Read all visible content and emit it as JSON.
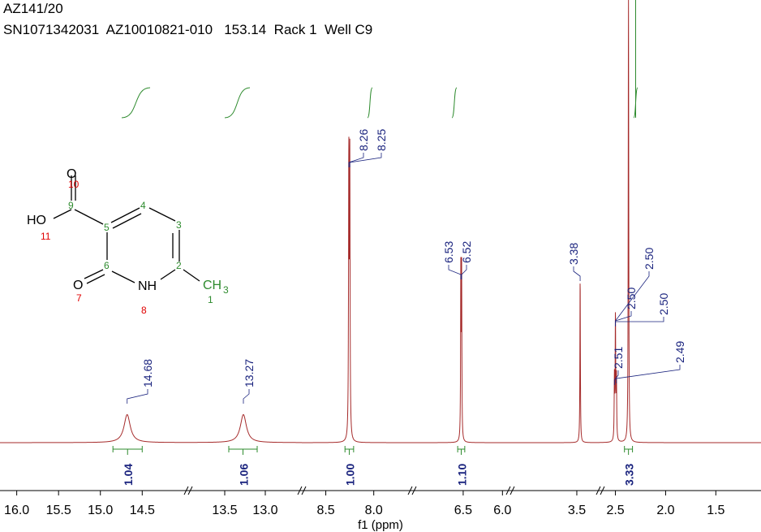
{
  "header": {
    "line1": "AZ141/20",
    "line2": "SN1071342031  AZ10010821-010   153.14  Rack 1  Well C9"
  },
  "colors": {
    "spectrum": "#a52a2a",
    "peak_label": "#1a237e",
    "integral": "#2e8b2e",
    "atom_red": "#e00000",
    "atom_green": "#2e8b2e"
  },
  "chart_data": {
    "type": "line",
    "title": "",
    "xlabel": "f1 (ppm)",
    "ylabel": "",
    "x_reversed": true,
    "axis_segments": [
      {
        "range": [
          16.2,
          13.95
        ],
        "ticks": [
          16.0,
          15.5,
          15.0,
          14.5
        ]
      },
      {
        "range": [
          13.95,
          12.55
        ],
        "ticks": [
          13.5,
          13.0
        ]
      },
      {
        "range": [
          8.75,
          7.6
        ],
        "ticks": [
          8.5,
          8.0
        ]
      },
      {
        "range": [
          7.15,
          5.9
        ],
        "ticks": [
          6.5,
          6.0
        ]
      },
      {
        "range": [
          5.9,
          2.65
        ],
        "ticks": [
          3.5
        ]
      },
      {
        "range": [
          2.65,
          1.05
        ],
        "ticks": [
          2.5,
          2.0,
          1.5
        ]
      }
    ],
    "tick_labels": [
      "16.0",
      "15.5",
      "15.0",
      "14.5",
      "13.5",
      "13.0",
      "8.5",
      "8.0",
      "6.5",
      "6.0",
      "3.5",
      "2.5",
      "2.0",
      "1.5"
    ],
    "peaks": [
      {
        "ppm": 14.68,
        "height": 0.1,
        "width": 0.045
      },
      {
        "ppm": 13.27,
        "height": 0.1,
        "width": 0.045
      },
      {
        "ppm": 8.26,
        "height": 0.99,
        "width": 0.0035
      },
      {
        "ppm": 8.25,
        "height": 0.99,
        "width": 0.0035
      },
      {
        "ppm": 6.53,
        "height": 0.6,
        "width": 0.0035
      },
      {
        "ppm": 6.52,
        "height": 0.6,
        "width": 0.0035
      },
      {
        "ppm": 3.38,
        "height": 0.59,
        "width": 0.01
      },
      {
        "ppm": 2.51,
        "height": 0.22,
        "width": 0.003
      },
      {
        "ppm": 2.5,
        "height": 0.44,
        "width": 0.003
      },
      {
        "ppm": 2.49,
        "height": 0.22,
        "width": 0.003
      },
      {
        "ppm": 2.37,
        "height": 1.6,
        "width": 0.003
      }
    ],
    "peak_labels": [
      {
        "ppm": 14.68,
        "label": "14.68"
      },
      {
        "ppm": 13.27,
        "label": "13.27"
      },
      {
        "ppm": 8.26,
        "label": "8.26"
      },
      {
        "ppm": 8.25,
        "label": "8.25"
      },
      {
        "ppm": 6.53,
        "label": "6.53"
      },
      {
        "ppm": 6.52,
        "label": "6.52"
      },
      {
        "ppm": 3.38,
        "label": "3.38"
      },
      {
        "ppm": 2.51,
        "label": "2.51"
      },
      {
        "ppm": 2.5,
        "label": "2.50"
      },
      {
        "ppm": 2.5,
        "label": "2.50"
      },
      {
        "ppm": 2.5,
        "label": "2.50"
      },
      {
        "ppm": 2.49,
        "label": "2.49"
      }
    ],
    "integrals": [
      {
        "from": 14.85,
        "to": 14.5,
        "value": "1.04"
      },
      {
        "from": 13.45,
        "to": 13.1,
        "value": "1.06"
      },
      {
        "from": 8.3,
        "to": 8.21,
        "value": "1.00"
      },
      {
        "from": 6.57,
        "to": 6.48,
        "value": "1.10"
      },
      {
        "from": 2.41,
        "to": 2.33,
        "value": "3.33"
      }
    ]
  },
  "molecule": {
    "atoms": [
      {
        "label": "O",
        "num": "10",
        "color": "red"
      },
      {
        "label": "9",
        "num": "",
        "color": "green"
      },
      {
        "label": "HO",
        "num": "11",
        "color": "red"
      },
      {
        "label": "5",
        "num": "",
        "color": "green"
      },
      {
        "label": "4",
        "num": "",
        "color": "green"
      },
      {
        "label": "3",
        "num": "",
        "color": "green"
      },
      {
        "label": "2",
        "num": "",
        "color": "green"
      },
      {
        "label": "6",
        "num": "",
        "color": "green"
      },
      {
        "label": "O",
        "num": "7",
        "color": "red"
      },
      {
        "label": "NH",
        "num": "8",
        "color": "red"
      },
      {
        "label": "CH",
        "sub": "3",
        "num": "1",
        "color": "green"
      }
    ]
  }
}
